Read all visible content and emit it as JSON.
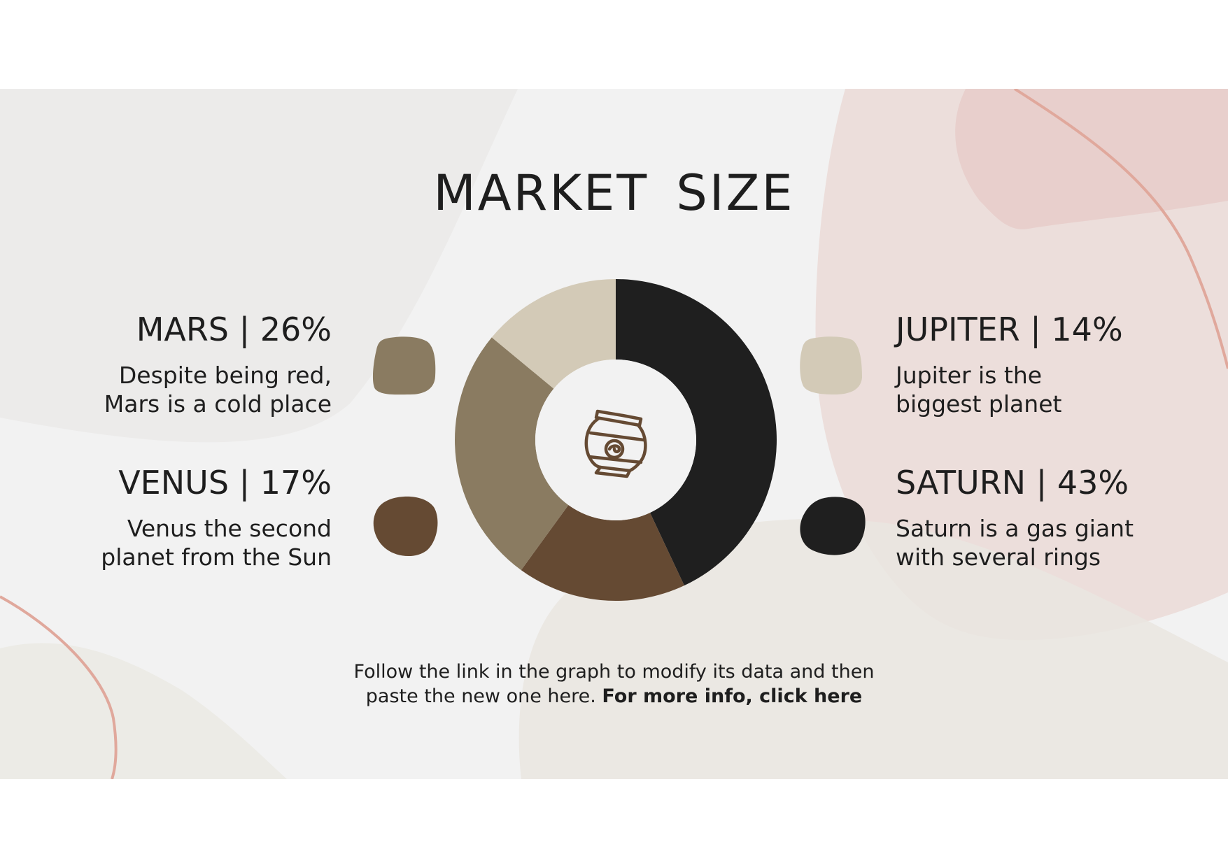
{
  "slide": {
    "title": "MARKET SIZE",
    "footer": {
      "line1": "Follow the link in the graph to modify its data and then",
      "line2_plain": "paste the new one here.",
      "line2_link": "For more info, click here"
    }
  },
  "items": {
    "mars": {
      "heading": "MARS | 26%",
      "desc1": "Despite being red,",
      "desc2": "Mars is a cold place",
      "color": "#8a7b61"
    },
    "venus": {
      "heading": "VENUS | 17%",
      "desc1": "Venus the second",
      "desc2": "planet from the Sun",
      "color": "#654a33"
    },
    "jupiter": {
      "heading": "JUPITER | 14%",
      "desc1": "Jupiter is the",
      "desc2": "biggest planet",
      "color": "#d3cab7"
    },
    "saturn": {
      "heading": "SATURN | 43%",
      "desc1": "Saturn is a gas giant",
      "desc2": "with several rings",
      "color": "#1f1f1f"
    }
  },
  "center_icon": "vase-icon",
  "chart_data": {
    "type": "pie",
    "donut": true,
    "categories": [
      "Saturn",
      "Venus",
      "Mars",
      "Jupiter"
    ],
    "values": [
      43,
      17,
      26,
      14
    ],
    "colors": [
      "#1f1f1f",
      "#654a33",
      "#8a7b61",
      "#d3cab7"
    ],
    "title": "MARKET SIZE"
  }
}
